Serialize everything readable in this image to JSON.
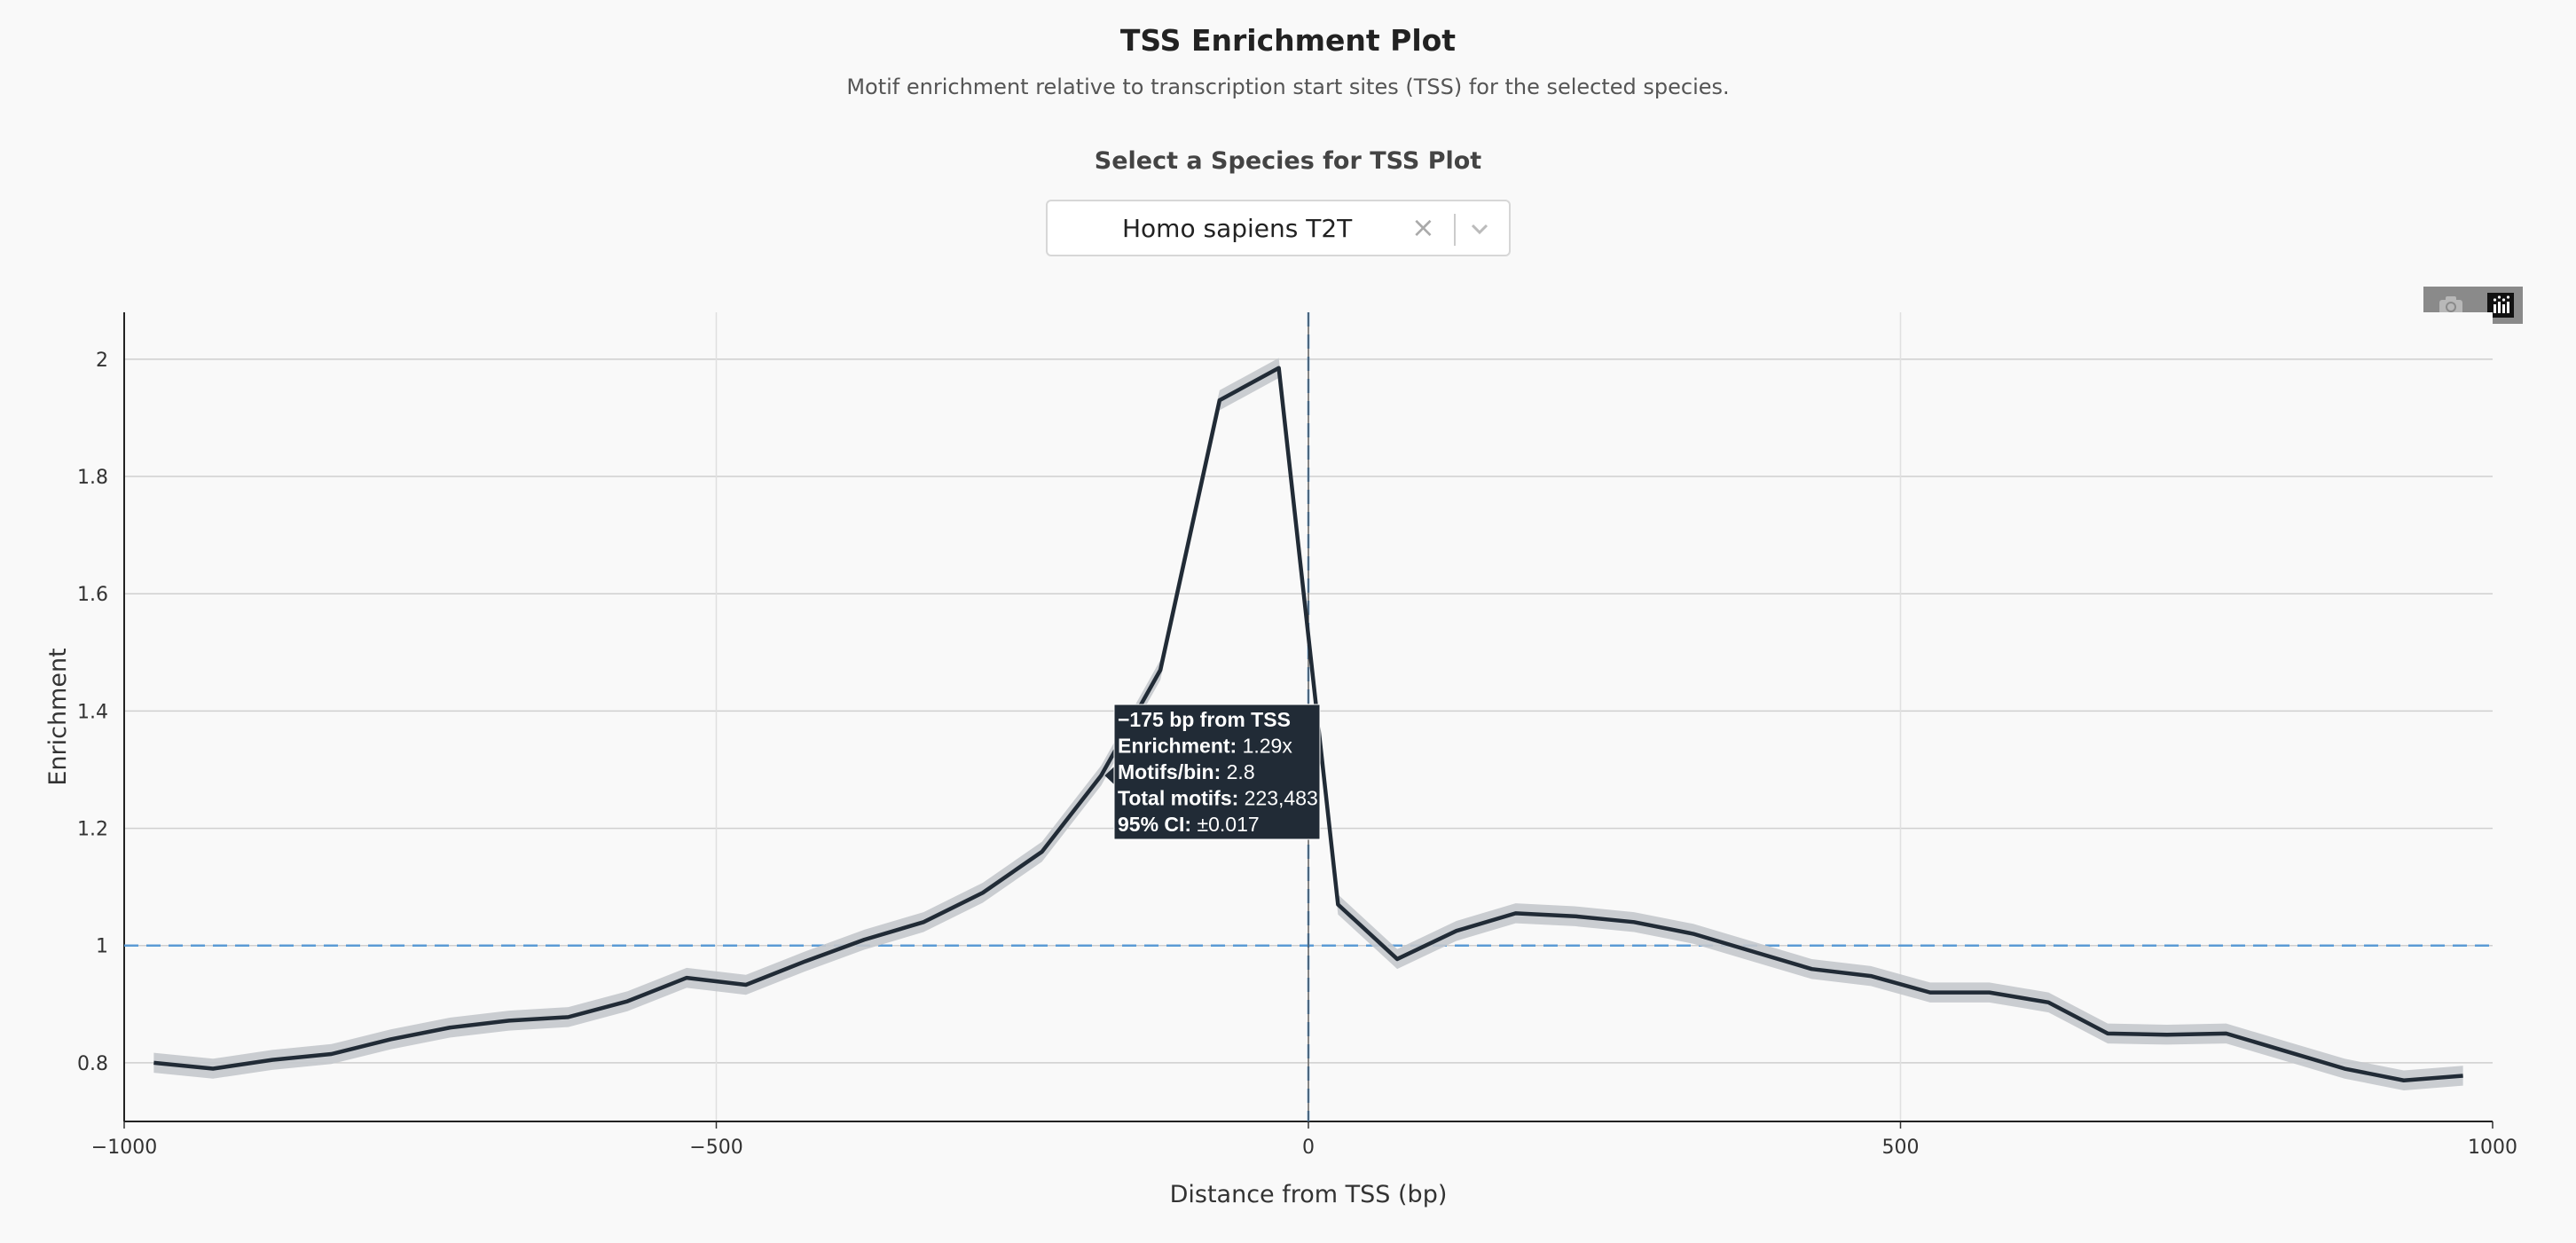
{
  "header": {
    "title": "TSS Enrichment Plot",
    "subtitle": "Motif enrichment relative to transcription start sites (TSS) for the selected species."
  },
  "species_select": {
    "label": "Select a Species for TSS Plot",
    "value": "Homo sapiens T2T",
    "clear_icon": "×"
  },
  "modebar": {
    "buttons": [
      "camera-icon",
      "plotly-logo-icon"
    ]
  },
  "tooltip": {
    "title": "−175 bp from TSS",
    "lines": [
      {
        "label": "Enrichment:",
        "value": "1.29x"
      },
      {
        "label": "Motifs/bin:",
        "value": "2.8"
      },
      {
        "label": "Total motifs:",
        "value": "223,483"
      },
      {
        "label": "95% CI:",
        "value": "±0.017"
      }
    ]
  },
  "chart_data": {
    "type": "line",
    "title": "",
    "xlabel": "Distance from TSS (bp)",
    "ylabel": "Enrichment",
    "xlim": [
      -1000,
      1000
    ],
    "ylim": [
      0.7,
      2.08
    ],
    "xticks": [
      -1000,
      -500,
      0,
      500,
      1000
    ],
    "xtick_labels": [
      "−1000",
      "−500",
      "0",
      "500",
      "1000"
    ],
    "yticks": [
      0.8,
      1,
      1.2,
      1.4,
      1.6,
      1.8,
      2
    ],
    "ytick_labels": [
      "0.8",
      "1",
      "1.2",
      "1.4",
      "1.6",
      "1.8",
      "2"
    ],
    "grid": true,
    "reference_lines": {
      "y": 1,
      "x": 0
    },
    "colors": {
      "line": "#212b36",
      "band": "#c4c8cc",
      "reference": "#5b9bd5",
      "tooltip_bg": "#212b36"
    },
    "series": [
      {
        "x": [
          -975,
          -925,
          -875,
          -825,
          -775,
          -725,
          -675,
          -625,
          -575,
          -525,
          -475,
          -425,
          -375,
          -325,
          -275,
          -225,
          -175,
          -125,
          -75,
          -25,
          25,
          75,
          125,
          175,
          225,
          275,
          325,
          375,
          425,
          475,
          525,
          575,
          625,
          675,
          725,
          775,
          825,
          875,
          925,
          975
        ],
        "y": [
          0.8,
          0.79,
          0.805,
          0.815,
          0.84,
          0.86,
          0.872,
          0.878,
          0.905,
          0.945,
          0.933,
          0.973,
          1.01,
          1.04,
          1.09,
          1.16,
          1.29,
          1.47,
          1.93,
          1.985,
          1.07,
          0.977,
          1.025,
          1.055,
          1.05,
          1.04,
          1.02,
          0.99,
          0.96,
          0.948,
          0.92,
          0.92,
          0.903,
          0.85,
          0.848,
          0.85,
          0.82,
          0.79,
          0.77,
          0.778
        ],
        "ci": 0.017,
        "hover_index": 16
      }
    ]
  }
}
